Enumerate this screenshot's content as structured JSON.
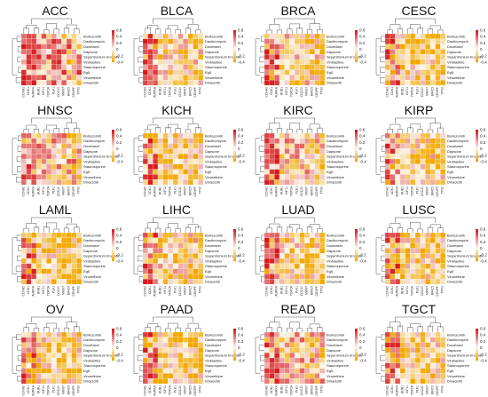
{
  "figure": {
    "layout": "4x4 grid of correlation heatmaps"
  },
  "chart_data": {
    "type": "heatmap",
    "colors": {
      "negative": "#f2a800",
      "neutral": "#fbf6ec",
      "positive": "#d7191c"
    },
    "colorbar": {
      "ticks": [
        0.6,
        0.4,
        0.2,
        0,
        -0.2,
        -0.4
      ]
    },
    "drugs": [
      "Bortezomib",
      "Dactinomycin",
      "Docetaxel",
      "Dapsone",
      "Sepantronium bromide",
      "Vinblastine",
      "Staurosporine",
      "Eg5",
      "Vinorelbine",
      "Dinaciclib"
    ],
    "genes": [
      "CCNA2",
      "CDK1",
      "AURKA",
      "BUB1",
      "KIF11",
      "TOP2A",
      "PLK1",
      "CDC20",
      "MKI67",
      "BIRC5",
      "CENPF",
      "TPX2"
    ],
    "panels": [
      {
        "name": "ACC",
        "heat": 0.22,
        "pos": 0.75,
        "dark": 0.35
      },
      {
        "name": "BLCA",
        "heat": -0.1,
        "pos": 0.55,
        "dark": 0.25
      },
      {
        "name": "BRCA",
        "heat": -0.05,
        "pos": 0.55,
        "dark": 0.3
      },
      {
        "name": "CESC",
        "heat": -0.18,
        "pos": 0.45,
        "dark": 0.3
      },
      {
        "name": "HNSC",
        "heat": 0.1,
        "pos": 0.6,
        "dark": 0.35
      },
      {
        "name": "KICH",
        "heat": -0.22,
        "pos": 0.4,
        "dark": 0.2
      },
      {
        "name": "KIRC",
        "heat": 0.05,
        "pos": 0.6,
        "dark": 0.3
      },
      {
        "name": "KIRP",
        "heat": -0.12,
        "pos": 0.5,
        "dark": 0.3
      },
      {
        "name": "LAML",
        "heat": -0.2,
        "pos": 0.45,
        "dark": 0.3
      },
      {
        "name": "LIHC",
        "heat": -0.08,
        "pos": 0.55,
        "dark": 0.3
      },
      {
        "name": "LUAD",
        "heat": -0.15,
        "pos": 0.5,
        "dark": 0.25
      },
      {
        "name": "LUSC",
        "heat": -0.18,
        "pos": 0.45,
        "dark": 0.25
      },
      {
        "name": "OV",
        "heat": -0.12,
        "pos": 0.5,
        "dark": 0.3
      },
      {
        "name": "PAAD",
        "heat": -0.2,
        "pos": 0.45,
        "dark": 0.3
      },
      {
        "name": "READ",
        "heat": 0.05,
        "pos": 0.6,
        "dark": 0.3
      },
      {
        "name": "TGCT",
        "heat": -0.15,
        "pos": 0.5,
        "dark": 0.3
      }
    ]
  }
}
